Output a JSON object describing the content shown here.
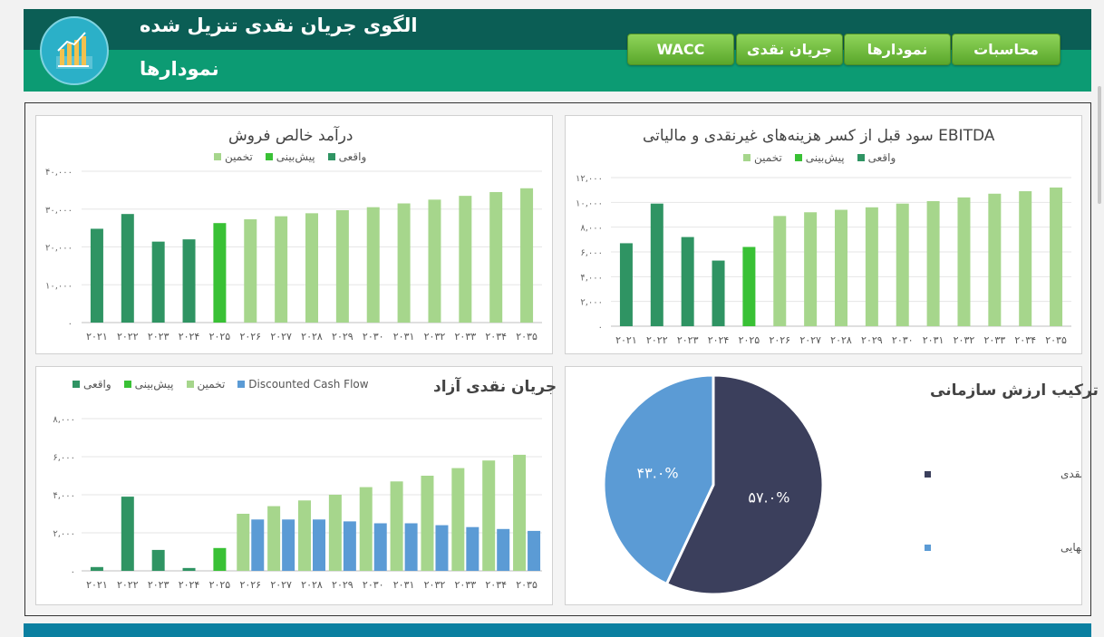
{
  "header": {
    "title": "الگوی جریان نقدی تنزیل شده",
    "subtitle": "نمودارها",
    "logo_icon": "bar-chart-icon"
  },
  "nav": {
    "items": [
      {
        "label": "محاسبات"
      },
      {
        "label": "نمودارها"
      },
      {
        "label": "جریان نقدی"
      },
      {
        "label": "WACC"
      }
    ]
  },
  "colors": {
    "actual": "#2f9463",
    "forecast": "#39c135",
    "estimate": "#a6d68c",
    "dcf": "#5b9bd5",
    "pie_dark": "#3b3f5c",
    "pie_light": "#5b9bd5"
  },
  "legend": {
    "actual": "واقعی",
    "forecast": "پیش‌بینی",
    "estimate": "تخمین",
    "dcf": "Discounted Cash Flow"
  },
  "chart_data": [
    {
      "id": "revenue",
      "type": "bar",
      "title": "درآمد خالص فروش",
      "categories": [
        "۲۰۲۱",
        "۲۰۲۲",
        "۲۰۲۳",
        "۲۰۲۴",
        "۲۰۲۵",
        "۲۰۲۶",
        "۲۰۲۷",
        "۲۰۲۸",
        "۲۰۲۹",
        "۲۰۳۰",
        "۲۰۳۱",
        "۲۰۳۲",
        "۲۰۳۳",
        "۲۰۳۴",
        "۲۰۳۵"
      ],
      "values": [
        24800,
        28700,
        21400,
        22000,
        26300,
        27300,
        28100,
        28900,
        29700,
        30500,
        31500,
        32500,
        33500,
        34500,
        35500
      ],
      "kinds": [
        "actual",
        "actual",
        "actual",
        "actual",
        "forecast",
        "estimate",
        "estimate",
        "estimate",
        "estimate",
        "estimate",
        "estimate",
        "estimate",
        "estimate",
        "estimate",
        "estimate"
      ],
      "yticks": [
        "۰",
        "۱۰,۰۰۰",
        "۲۰,۰۰۰",
        "۳۰,۰۰۰",
        "۴۰,۰۰۰"
      ],
      "ylim": [
        0,
        40000
      ],
      "grid": true
    },
    {
      "id": "ebitda",
      "type": "bar",
      "title": "EBITDA  سود قبل از کسر هزینه‌های غیرنقدی و مالیاتی",
      "categories": [
        "۲۰۲۱",
        "۲۰۲۲",
        "۲۰۲۳",
        "۲۰۲۴",
        "۲۰۲۵",
        "۲۰۲۶",
        "۲۰۲۷",
        "۲۰۲۸",
        "۲۰۲۹",
        "۲۰۳۰",
        "۲۰۳۱",
        "۲۰۳۲",
        "۲۰۳۳",
        "۲۰۳۴",
        "۲۰۳۵"
      ],
      "values": [
        6700,
        9900,
        7200,
        5300,
        6400,
        8900,
        9200,
        9400,
        9600,
        9900,
        10100,
        10400,
        10700,
        10900,
        11200
      ],
      "kinds": [
        "actual",
        "actual",
        "actual",
        "actual",
        "forecast",
        "estimate",
        "estimate",
        "estimate",
        "estimate",
        "estimate",
        "estimate",
        "estimate",
        "estimate",
        "estimate",
        "estimate"
      ],
      "yticks": [
        "۰",
        "۲,۰۰۰",
        "۴,۰۰۰",
        "۶,۰۰۰",
        "۸,۰۰۰",
        "۱۰,۰۰۰",
        "۱۲,۰۰۰"
      ],
      "ylim": [
        0,
        12000
      ],
      "grid": true
    },
    {
      "id": "fcf",
      "type": "bar",
      "title": "جریان نقدی آزاد",
      "categories": [
        "۲۰۲۱",
        "۲۰۲۲",
        "۲۰۲۳",
        "۲۰۲۴",
        "۲۰۲۵",
        "۲۰۲۶",
        "۲۰۲۷",
        "۲۰۲۸",
        "۲۰۲۹",
        "۲۰۳۰",
        "۲۰۳۱",
        "۲۰۳۲",
        "۲۰۳۳",
        "۲۰۳۴",
        "۲۰۳۵"
      ],
      "series": [
        {
          "name": "cash_flow",
          "values": [
            200,
            3900,
            1100,
            150,
            1200,
            3000,
            3400,
            3700,
            4000,
            4400,
            4700,
            5000,
            5400,
            5800,
            6100
          ]
        },
        {
          "name": "Discounted Cash Flow",
          "values": [
            null,
            null,
            null,
            null,
            null,
            2700,
            2700,
            2700,
            2600,
            2500,
            2500,
            2400,
            2300,
            2200,
            2100
          ]
        }
      ],
      "kinds": [
        "actual",
        "actual",
        "actual",
        "actual",
        "forecast",
        "estimate",
        "estimate",
        "estimate",
        "estimate",
        "estimate",
        "estimate",
        "estimate",
        "estimate",
        "estimate",
        "estimate"
      ],
      "yticks": [
        "۰",
        "۲,۰۰۰",
        "۴,۰۰۰",
        "۶,۰۰۰",
        "۸,۰۰۰"
      ],
      "ylim": [
        0,
        8000
      ],
      "grid": true
    },
    {
      "id": "ev",
      "type": "pie",
      "title": "ترکیب ارزش سازمانی",
      "slices": [
        {
          "label": "ارزش فعلی جریان  آزاد نقدی",
          "value": 57.0,
          "text": "۵۷.۰%"
        },
        {
          "label": "ارزش نهایی",
          "value": 43.0,
          "text": "۴۳.۰%"
        }
      ],
      "legend_position": "right"
    }
  ]
}
